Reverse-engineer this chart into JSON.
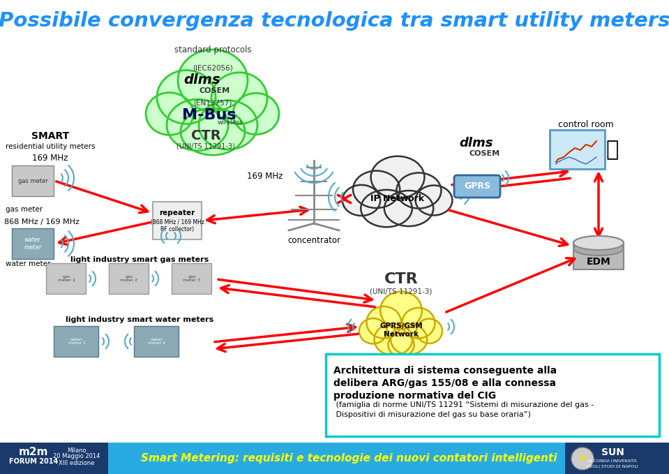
{
  "title": "Possibile convergenza tecnologica tra smart utility meters",
  "title_color": "#1E90FF",
  "title_fontsize": 21,
  "bg_color": "#FFFFFF",
  "footer_text": "Smart Metering: requisiti e tecnologie dei nuovi contatori intelligenti",
  "footer_text_color": "#FFFF00",
  "footer_bg": "#29ABE2",
  "footer_dark_bg": "#1A3A6B",
  "annotation_bold1": "Architettura di sistema conseguente alla",
  "annotation_bold2": "delibera ARG/gas 155/08 e alla connessa",
  "annotation_bold3": "produzione normativa del CIG",
  "annotation_normal": " (famiglia di norme\nUNI/TS 11291 “Sistemi di misurazione del gas -\nDispositivi di misurazione del gas su base oraria”)",
  "annotation_box_border": "#00CCCC",
  "cloud_green_fill": "#CCFFCC",
  "cloud_green_edge": "#33CC33",
  "cloud_white_fill": "#FFFFFF",
  "cloud_white_edge": "#333333",
  "cloud_yellow_fill": "#FFFF88",
  "cloud_yellow_edge": "#CCAA00",
  "gprs_fill": "#88BBDD",
  "gprs_edge": "#336699",
  "red": "#CC0000",
  "labels": {
    "standard_protocols": "standard protocols",
    "iec62056": "(IEC62056)",
    "dlms_top": "dlms",
    "cosem_top": "COSEM",
    "en13757": "(EN13757)",
    "mbus": "M-Bus",
    "wireless": "wireless",
    "ctr_top": "CTR",
    "ctr_top_sub": "(UNI/TS 11291-3)",
    "smart": "SMART",
    "residential": "residential utility meters",
    "mhz169_left": "169 MHz",
    "gas_meter": "gas meter",
    "mhz868": "868 MHz / 169 MHz",
    "water_meter": "water meter",
    "mhz169_mid": "169 MHz",
    "repeater": "repeater",
    "repeater_sub": "(868 MHz / 169 MHz\nRF collector)",
    "concentrator": "concentrator",
    "dlms_right": "dlms",
    "cosem_right": "COSEM",
    "ip_network": "IP Network",
    "gprs": "GPRS",
    "control_room": "control room",
    "edm": "EDM",
    "light_gas": "light industry smart gas meters",
    "light_water": "light industry smart water meters",
    "ctr_bottom": "CTR",
    "ctr_bottom_sub": "(UNI/TS 11291-3)",
    "gprs_gsm": "GPRS/GSM\nNetwork",
    "m2m_line1": "m2m",
    "m2m_line2": "FORUM 2014",
    "m2m_date": "Milano\n20 Maggio 2014\nXIII edizione",
    "sun": "SUN",
    "sun_sub": "SECONDA UNIVERSITÀ DEGLI STUDI DI NAPOLI"
  }
}
